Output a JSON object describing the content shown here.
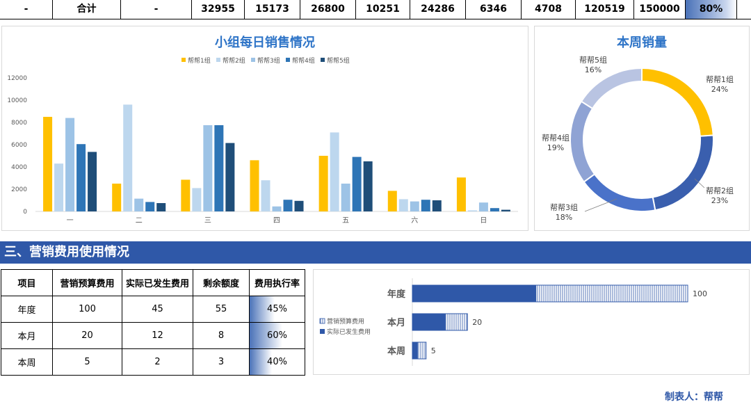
{
  "total_row": {
    "cells": [
      "-",
      "合计",
      "-",
      "32955",
      "15173",
      "26800",
      "10251",
      "24286",
      "6346",
      "4708",
      "120519",
      "150000",
      "80%"
    ],
    "progress_fraction": 0.8
  },
  "daily_chart": {
    "title": "小组每日销售情况",
    "legend": [
      "帮帮1组",
      "帮帮2组",
      "帮帮3组",
      "帮帮4组",
      "帮帮5组"
    ],
    "yticks": [
      "0",
      "2000",
      "4000",
      "6000",
      "8000",
      "10000",
      "12000"
    ]
  },
  "weekly_chart": {
    "title": "本周销量",
    "labels": [
      {
        "name": "帮帮1组",
        "pct": "24%"
      },
      {
        "name": "帮帮2组",
        "pct": "23%"
      },
      {
        "name": "帮帮3组",
        "pct": "18%"
      },
      {
        "name": "帮帮4组",
        "pct": "19%"
      },
      {
        "name": "帮帮5组",
        "pct": "16%"
      }
    ]
  },
  "section": {
    "title": "三、营销费用使用情况"
  },
  "cost_table": {
    "headers": [
      "项目",
      "营销预算费用",
      "实际已发生费用",
      "剩余额度",
      "费用执行率"
    ],
    "rows": [
      {
        "item": "年度",
        "budget": "100",
        "actual": "45",
        "remain": "55",
        "rate": "45%",
        "rate_fraction": 0.45
      },
      {
        "item": "本月",
        "budget": "20",
        "actual": "12",
        "remain": "8",
        "rate": "60%",
        "rate_fraction": 0.6
      },
      {
        "item": "本周",
        "budget": "5",
        "actual": "2",
        "remain": "3",
        "rate": "40%",
        "rate_fraction": 0.4
      }
    ]
  },
  "cost_chart": {
    "legend": [
      "营销预算费用",
      "实际已发生费用"
    ]
  },
  "footer": {
    "maker": "制表人：帮帮"
  },
  "colors": {
    "group1": "#ffc000",
    "group2": "#bdd7ee",
    "group3": "#9dc3e6",
    "group4": "#2e75b6",
    "group5": "#1f4e79",
    "title_blue": "#2e74c7",
    "bar_dark": "#2f58a8"
  },
  "chart_data": [
    {
      "type": "bar",
      "title": "小组每日销售情况",
      "categories": [
        "一",
        "二",
        "三",
        "四",
        "五",
        "六",
        "日"
      ],
      "ylim": [
        0,
        12000
      ],
      "grid": false,
      "legend_position": "top",
      "series": [
        {
          "name": "帮帮1组",
          "values": [
            8500,
            2500,
            2850,
            4600,
            5000,
            1850,
            3050
          ]
        },
        {
          "name": "帮帮2组",
          "values": [
            4300,
            9600,
            2100,
            2800,
            7100,
            1100,
            100
          ]
        },
        {
          "name": "帮帮3组",
          "values": [
            8400,
            1150,
            7750,
            450,
            2500,
            900,
            800
          ]
        },
        {
          "name": "帮帮4组",
          "values": [
            6050,
            850,
            7750,
            1050,
            4900,
            1050,
            300
          ]
        },
        {
          "name": "帮帮5组",
          "values": [
            5350,
            750,
            6150,
            950,
            4500,
            1000,
            150
          ]
        }
      ]
    },
    {
      "type": "pie",
      "title": "本周销量",
      "labels": [
        "帮帮1组",
        "帮帮2组",
        "帮帮3组",
        "帮帮4组",
        "帮帮5组"
      ],
      "values": [
        24,
        23,
        18,
        19,
        16
      ],
      "donut": true
    },
    {
      "type": "bar",
      "orientation": "horizontal",
      "categories": [
        "年度",
        "本月",
        "本周"
      ],
      "series": [
        {
          "name": "营销预算费用",
          "values": [
            100,
            20,
            5
          ]
        },
        {
          "name": "实际已发生费用",
          "values": [
            45,
            12,
            2
          ]
        }
      ],
      "data_labels": [
        "100",
        "20",
        "5"
      ],
      "legend_position": "left"
    }
  ]
}
